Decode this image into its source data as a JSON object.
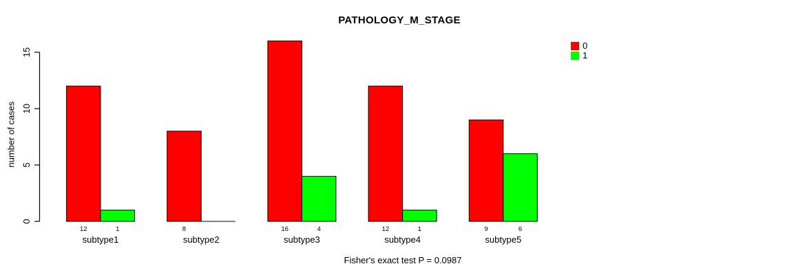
{
  "chart_data": {
    "type": "bar",
    "title": "PATHOLOGY_M_STAGE",
    "ylabel": "number of cases",
    "xlabel": "",
    "categories": [
      "subtype1",
      "subtype2",
      "subtype3",
      "subtype4",
      "subtype5"
    ],
    "series": [
      {
        "name": "0",
        "color": "#FF0000",
        "values": [
          12,
          8,
          16,
          12,
          9
        ]
      },
      {
        "name": "1",
        "color": "#00FF00",
        "values": [
          1,
          0,
          4,
          1,
          6
        ]
      }
    ],
    "value_labels_shown": [
      [
        "12",
        "1"
      ],
      [
        "8",
        ""
      ],
      [
        "16",
        "4"
      ],
      [
        "12",
        "1"
      ],
      [
        "9",
        "6"
      ]
    ],
    "yticks": [
      0,
      5,
      10,
      15
    ],
    "ylim": [
      0,
      16.4
    ],
    "grid": false,
    "legend_position": "top-right",
    "bar_outline_color": "#000000",
    "note": "Fisher's exact test P = 0.0987"
  }
}
